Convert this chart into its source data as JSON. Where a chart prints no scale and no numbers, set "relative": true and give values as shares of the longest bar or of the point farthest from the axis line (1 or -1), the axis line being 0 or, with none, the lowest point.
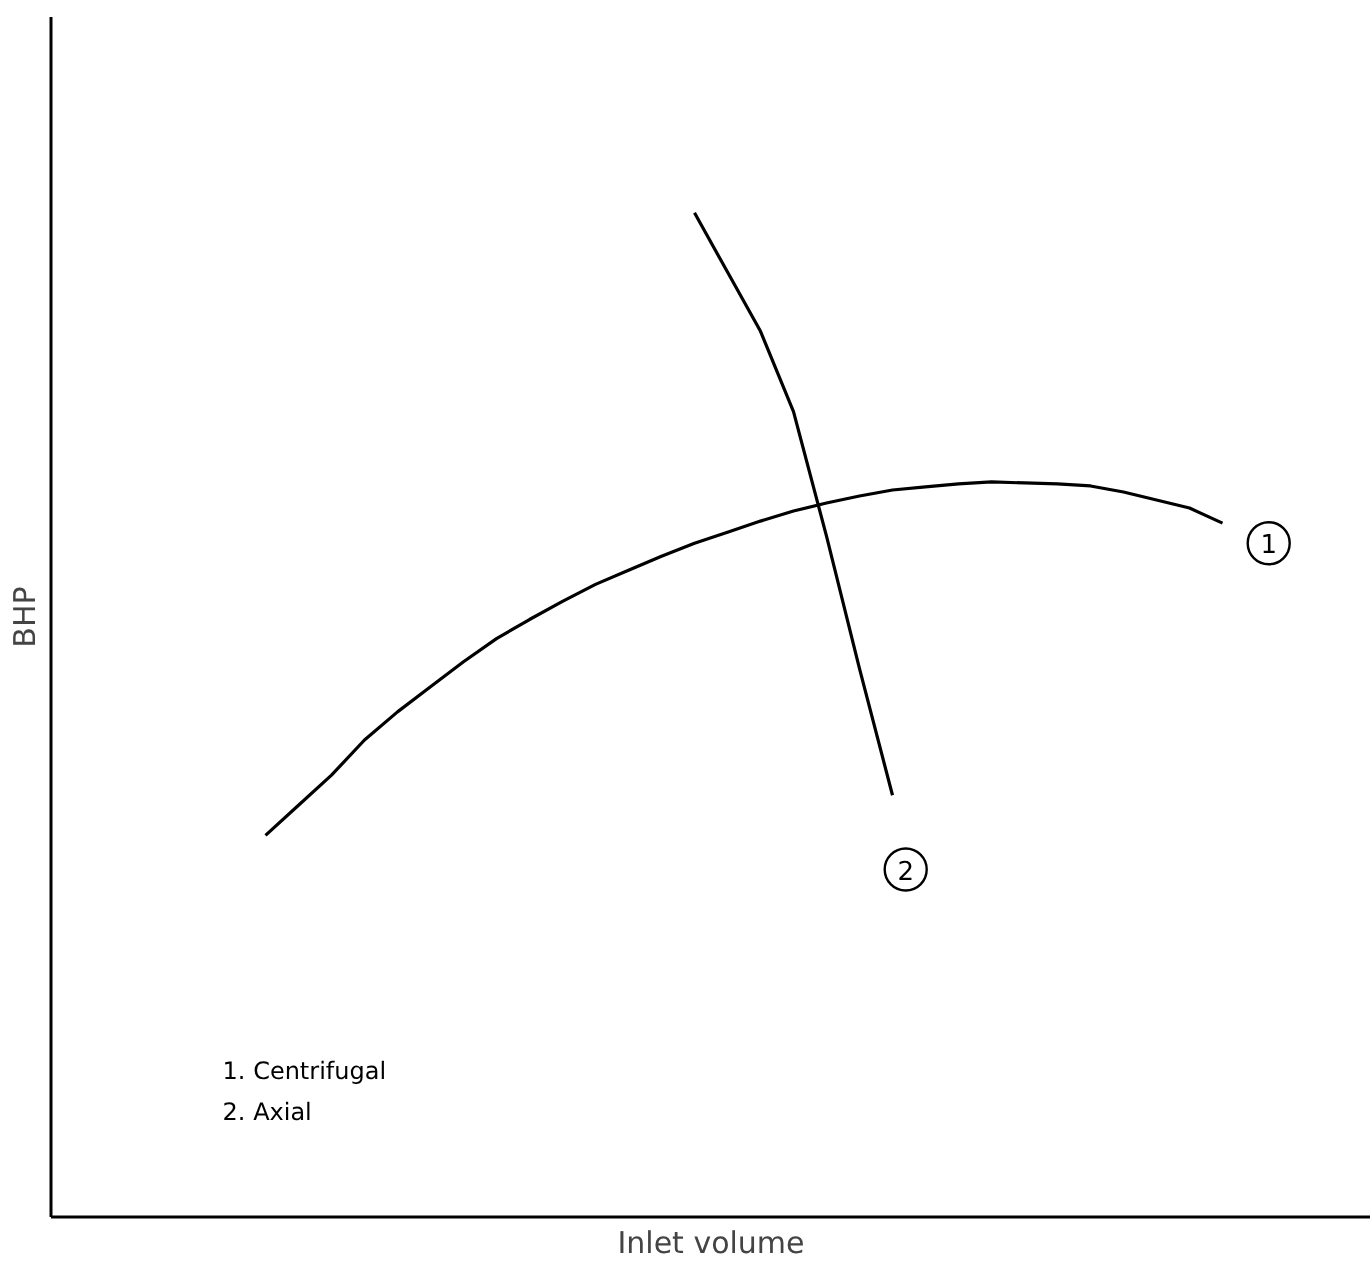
{
  "chart_data": {
    "type": "line",
    "relative": true,
    "xlabel": "Inlet volume",
    "ylabel": "BHP",
    "marker": "none",
    "line_style": "solid",
    "categories": [
      null,
      null,
      null,
      null,
      null,
      null,
      null,
      null,
      null,
      null,
      null,
      null,
      null,
      null,
      null,
      null,
      null,
      null,
      null,
      null,
      null,
      null,
      null,
      null,
      null,
      null,
      null,
      null,
      null,
      null,
      null,
      null,
      null,
      null,
      null,
      null,
      null,
      null,
      null,
      null
    ],
    "series": [
      {
        "name": "1",
        "color": "#000000",
        "values": [
          null,
          null,
          null,
          null,
          null,
          null,
          0.38,
          0.41,
          0.44,
          0.475,
          0.503,
          0.528,
          0.553,
          0.576,
          0.595,
          0.613,
          0.63,
          0.644,
          0.658,
          0.671,
          0.682,
          0.693,
          0.703,
          0.711,
          0.718,
          0.724,
          0.727,
          0.73,
          0.732,
          0.731,
          0.73,
          0.728,
          0.722,
          0.714,
          0.706,
          0.691,
          null,
          null,
          null,
          null
        ]
      },
      {
        "name": "2",
        "color": "#000000",
        "values": [
          null,
          null,
          null,
          null,
          null,
          null,
          null,
          null,
          null,
          null,
          null,
          null,
          null,
          null,
          null,
          null,
          null,
          null,
          null,
          1.0,
          0.941,
          0.882,
          0.802,
          0.678,
          0.546,
          0.42,
          null,
          null,
          null,
          null,
          null,
          null,
          null,
          null,
          null,
          null,
          null,
          null,
          null,
          null
        ]
      }
    ],
    "annotations": [
      "1. Centrifugal",
      "2. Axial"
    ]
  }
}
